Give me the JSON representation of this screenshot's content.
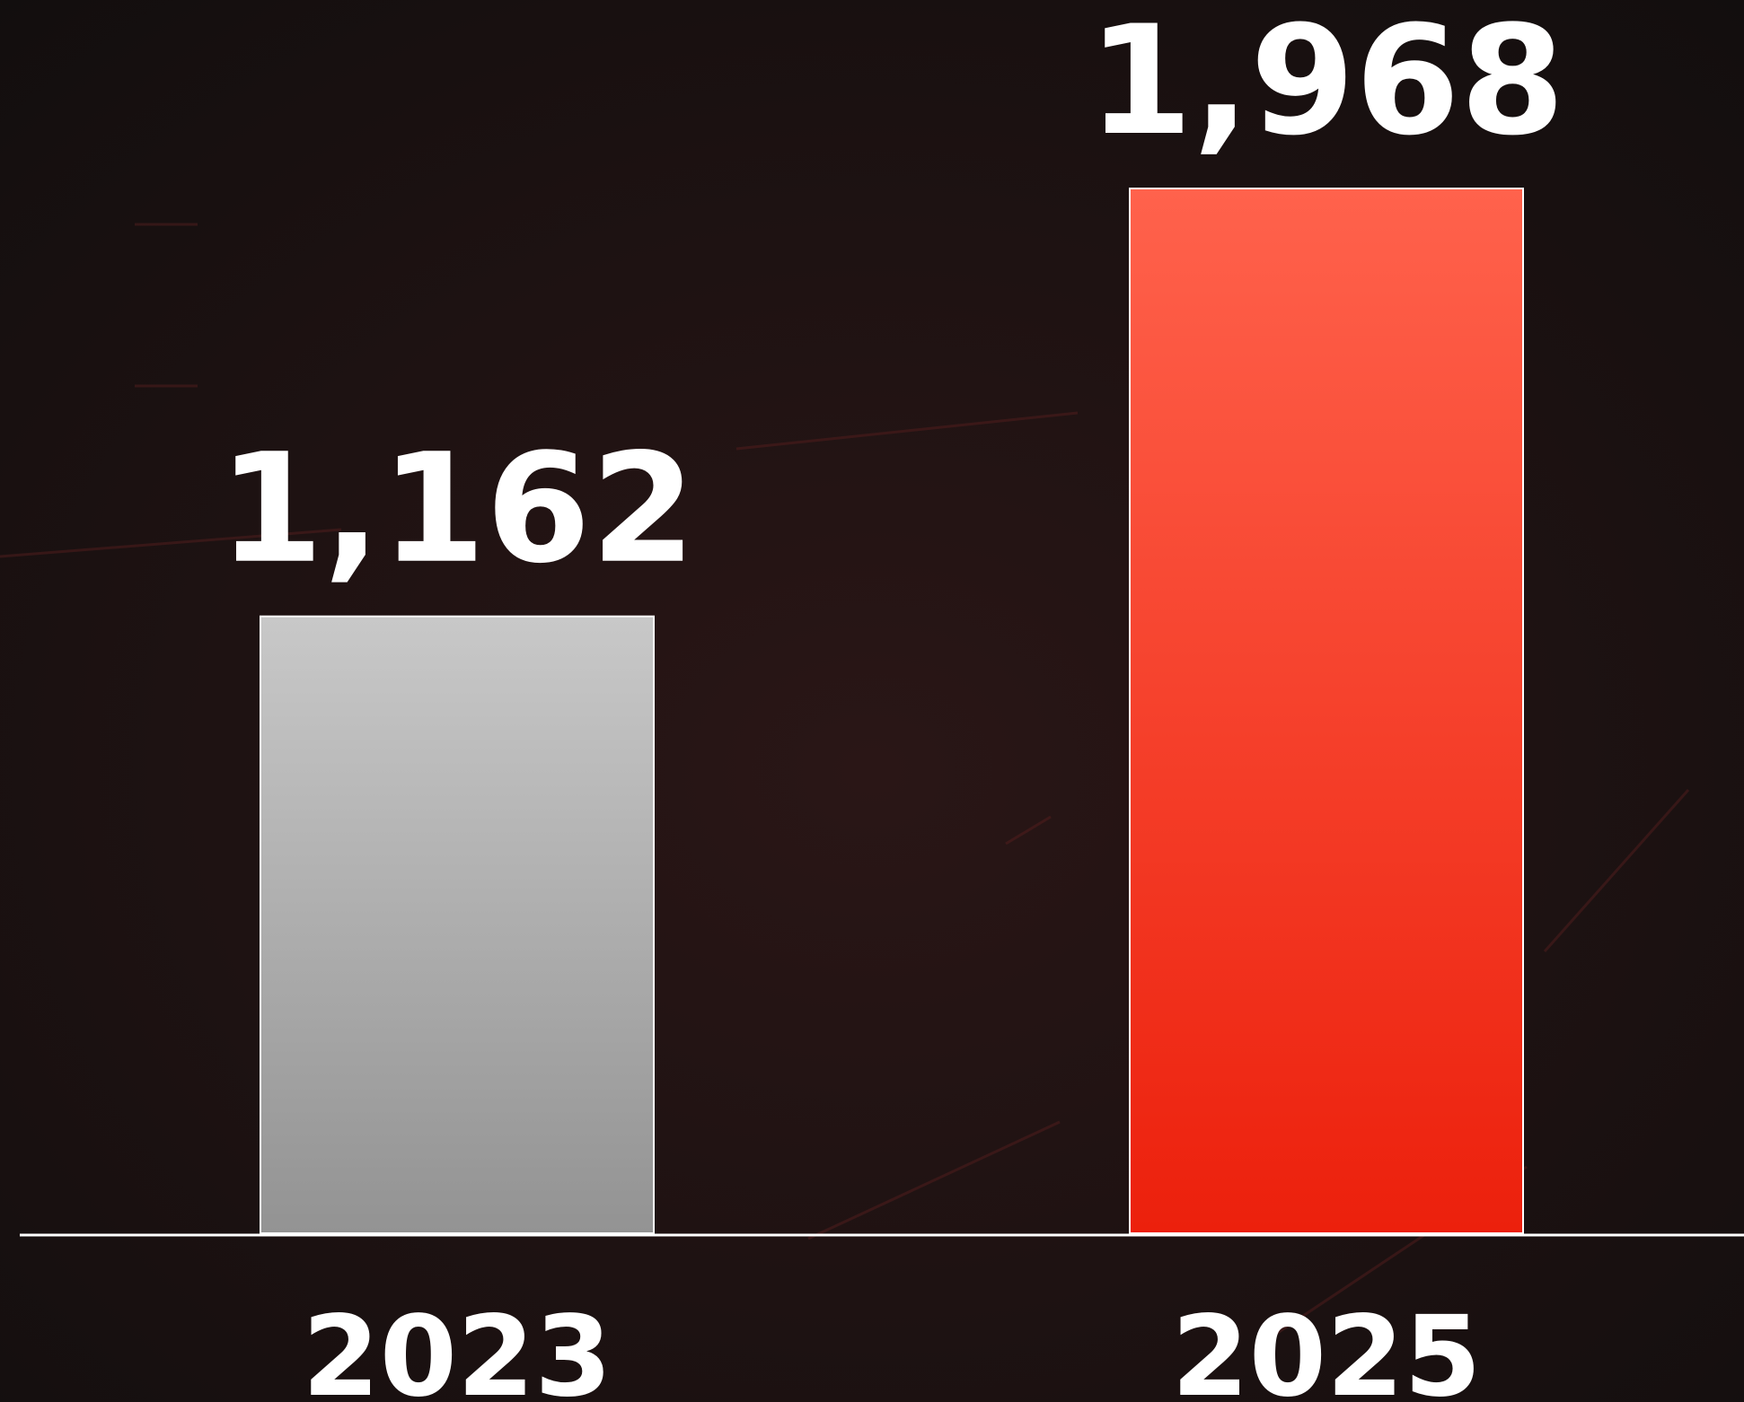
{
  "chart_data": {
    "type": "bar",
    "categories": [
      "2023",
      "2025"
    ],
    "values": [
      1162,
      1968
    ],
    "value_labels": [
      "1,162",
      "1,968"
    ],
    "colors": [
      [
        "#c8c8c8",
        "#939393"
      ],
      [
        "#ff624c",
        "#ec200c"
      ]
    ]
  }
}
